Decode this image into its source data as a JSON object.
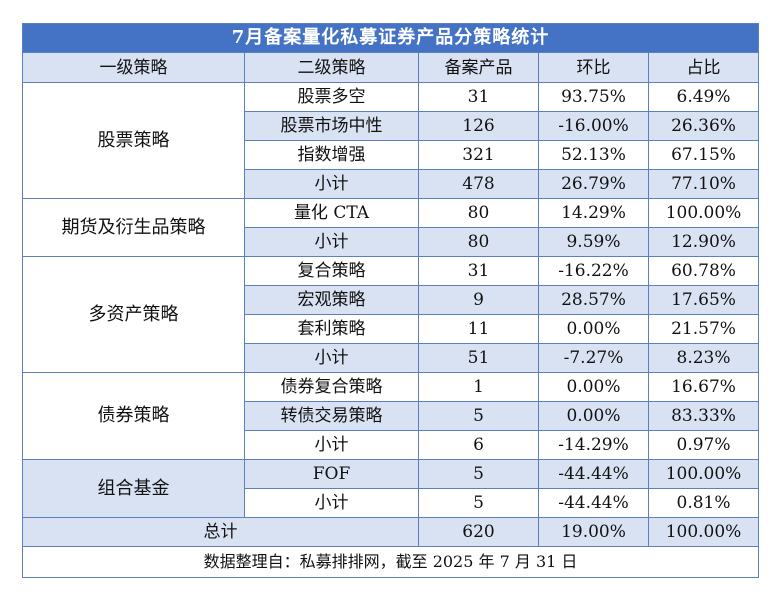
{
  "title": "7月备案量化私募证券产品分策略统计",
  "headers": [
    "一级策略",
    "二级策略",
    "备案产品",
    "环比",
    "占比"
  ],
  "groups": [
    {
      "name": "股票策略",
      "rows": [
        {
          "sub": "股票多空",
          "count": "31",
          "mom": "93.75%",
          "share": "6.49%"
        },
        {
          "sub": "股票市场中性",
          "count": "126",
          "mom": "-16.00%",
          "share": "26.36%"
        },
        {
          "sub": "指数增强",
          "count": "321",
          "mom": "52.13%",
          "share": "67.15%"
        },
        {
          "sub": "小计",
          "count": "478",
          "mom": "26.79%",
          "share": "77.10%"
        }
      ]
    },
    {
      "name": "期货及衍生品策略",
      "rows": [
        {
          "sub": "量化 CTA",
          "count": "80",
          "mom": "14.29%",
          "share": "100.00%"
        },
        {
          "sub": "小计",
          "count": "80",
          "mom": "9.59%",
          "share": "12.90%"
        }
      ]
    },
    {
      "name": "多资产策略",
      "rows": [
        {
          "sub": "复合策略",
          "count": "31",
          "mom": "-16.22%",
          "share": "60.78%"
        },
        {
          "sub": "宏观策略",
          "count": "9",
          "mom": "28.57%",
          "share": "17.65%"
        },
        {
          "sub": "套利策略",
          "count": "11",
          "mom": "0.00%",
          "share": "21.57%"
        },
        {
          "sub": "小计",
          "count": "51",
          "mom": "-7.27%",
          "share": "8.23%"
        }
      ]
    },
    {
      "name": "债券策略",
      "rows": [
        {
          "sub": "债券复合策略",
          "count": "1",
          "mom": "0.00%",
          "share": "16.67%"
        },
        {
          "sub": "转债交易策略",
          "count": "5",
          "mom": "0.00%",
          "share": "83.33%"
        },
        {
          "sub": "小计",
          "count": "6",
          "mom": "-14.29%",
          "share": "0.97%"
        }
      ]
    },
    {
      "name": "组合基金",
      "rows": [
        {
          "sub": "FOF",
          "count": "5",
          "mom": "-44.44%",
          "share": "100.00%"
        },
        {
          "sub": "小计",
          "count": "5",
          "mom": "-44.44%",
          "share": "0.81%"
        }
      ]
    }
  ],
  "total": {
    "label": "总计",
    "count": "620",
    "mom": "19.00%",
    "share": "100.00%"
  },
  "footnote": "数据整理自：私募排排网，截至 2025 年 7 月 31 日"
}
